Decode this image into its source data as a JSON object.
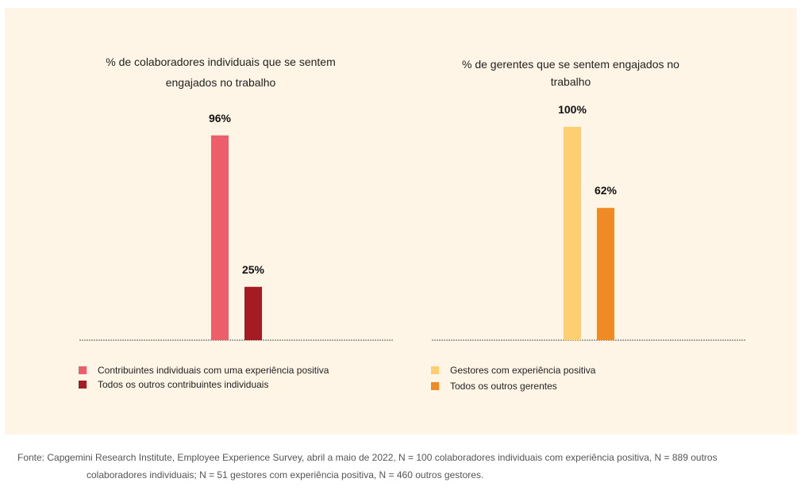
{
  "chart_data": [
    {
      "type": "bar",
      "title": "% de colaboradores individuais que se sentem engajados no trabalho",
      "title_lines": [
        "% de colaboradores individuais que se sentem",
        "engajados no trabalho"
      ],
      "categories": [
        "Contribuintes individuais com uma experiência positiva",
        "Todos os outros contribuintes individuais"
      ],
      "values": [
        96,
        25
      ],
      "value_labels": [
        "96%",
        "25%"
      ],
      "colors": [
        "#ec5f6a",
        "#a51b24"
      ],
      "ylim": [
        0,
        100
      ],
      "xlabel": "",
      "ylabel": "",
      "grid": false,
      "legend_position": "bottom-left",
      "legend": [
        {
          "label": "Contribuintes individuais com uma experiência positiva",
          "color": "#ec5f6a"
        },
        {
          "label": "Todos os outros contribuintes individuais",
          "color": "#a51b24"
        }
      ]
    },
    {
      "type": "bar",
      "title": "% de gerentes que se sentem engajados no trabalho",
      "title_lines": [
        "% de gerentes que se sentem engajados no",
        "trabalho"
      ],
      "categories": [
        "Gestores com experiência positiva",
        "Todos os outros gerentes"
      ],
      "values": [
        100,
        62
      ],
      "value_labels": [
        "100%",
        "62%"
      ],
      "colors": [
        "#fdcf70",
        "#f08a24"
      ],
      "ylim": [
        0,
        100
      ],
      "xlabel": "",
      "ylabel": "",
      "grid": false,
      "legend_position": "bottom-left",
      "legend": [
        {
          "label": "Gestores com experiência positiva",
          "color": "#fdcf70"
        },
        {
          "label": "Todos os outros gerentes",
          "color": "#f08a24"
        }
      ]
    }
  ],
  "source": {
    "line1": "Fonte: Capgemini Research Institute, Employee Experience Survey, abril a maio de 2022, N = 100 colaboradores individuais com experiência positiva, N = 889 outros",
    "line2": "colaboradores individuais; N = 51 gestores com experiência positiva, N = 460 outros gestores."
  },
  "colors": {
    "panel_background": "#fff5e6",
    "baseline": "#555555"
  }
}
